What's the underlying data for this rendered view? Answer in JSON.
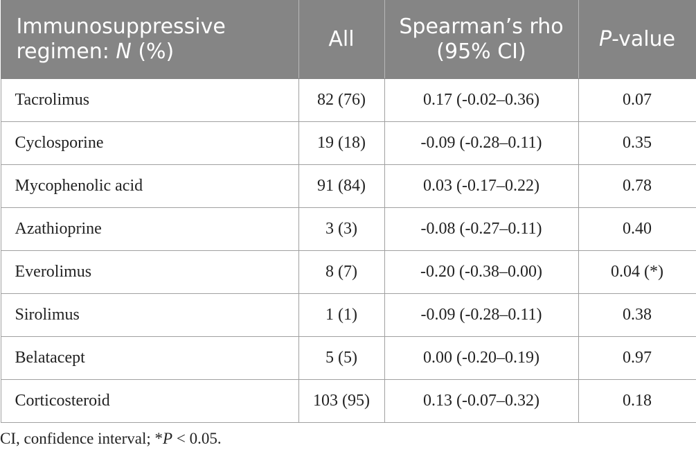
{
  "table": {
    "headers": {
      "regimen_prefix": "Immunosuppressive regimen: ",
      "regimen_n": "N",
      "regimen_suffix": " (%)",
      "all": "All",
      "rho": "Spearman’s rho (95% CI)",
      "pvalue_p": "P",
      "pvalue_suffix": "-value"
    },
    "rows": [
      {
        "regimen": "Tacrolimus",
        "all": "82 (76)",
        "rho": "0.17 (-0.02–0.36)",
        "p": "0.07"
      },
      {
        "regimen": "Cyclosporine",
        "all": "19 (18)",
        "rho": "-0.09 (-0.28–0.11)",
        "p": "0.35"
      },
      {
        "regimen": "Mycophenolic acid",
        "all": "91 (84)",
        "rho": "0.03 (-0.17–0.22)",
        "p": "0.78"
      },
      {
        "regimen": "Azathioprine",
        "all": "3 (3)",
        "rho": "-0.08 (-0.27–0.11)",
        "p": "0.40"
      },
      {
        "regimen": "Everolimus",
        "all": "8 (7)",
        "rho": "-0.20 (-0.38–0.00)",
        "p": "0.04 (*)"
      },
      {
        "regimen": "Sirolimus",
        "all": "1 (1)",
        "rho": "-0.09 (-0.28–0.11)",
        "p": "0.38"
      },
      {
        "regimen": "Belatacept",
        "all": "5 (5)",
        "rho": "0.00 (-0.20–0.19)",
        "p": "0.97"
      },
      {
        "regimen": "Corticosteroid",
        "all": "103 (95)",
        "rho": "0.13 (-0.07–0.32)",
        "p": "0.18"
      }
    ]
  },
  "footnote": {
    "prefix": "CI, confidence interval; *",
    "p": "P",
    "suffix": " < 0.05."
  },
  "colors": {
    "header_bg": "#858585",
    "header_text": "#ffffff",
    "border": "#a0a0a0"
  }
}
